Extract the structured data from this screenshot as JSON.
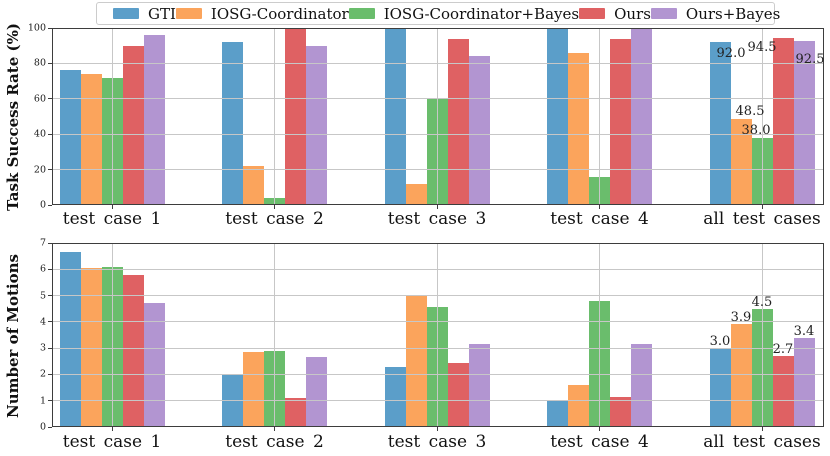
{
  "legend": {
    "entries": [
      {
        "label": "GTI",
        "color": "#5b9ec9"
      },
      {
        "label": "IOSG-Coordinator",
        "color": "#fba45c"
      },
      {
        "label": "IOSG-Coordinator+Bayes",
        "color": "#6abd6c"
      },
      {
        "label": "Ours",
        "color": "#df6163"
      },
      {
        "label": "Ours+Bayes",
        "color": "#b295d1"
      }
    ]
  },
  "chart_data": [
    {
      "type": "bar",
      "title": "",
      "xlabel": "",
      "ylabel": "Task Success Rate (%)",
      "ylim": [
        0,
        100
      ],
      "yticks": [
        0,
        20,
        40,
        60,
        80,
        100
      ],
      "grid": true,
      "legend_position": "top",
      "categories": [
        "test case 1",
        "test case 2",
        "test case 3",
        "test case 4",
        "all test cases"
      ],
      "series": [
        {
          "name": "GTI",
          "color": "#5b9ec9",
          "values": [
            76,
            92,
            100,
            100,
            92.0
          ]
        },
        {
          "name": "IOSG-Coordinator",
          "color": "#fba45c",
          "values": [
            74,
            22,
            12,
            86,
            48.5
          ]
        },
        {
          "name": "IOSG-Coordinator+Bayes",
          "color": "#6abd6c",
          "values": [
            72,
            4,
            60,
            16,
            38.0
          ]
        },
        {
          "name": "Ours",
          "color": "#df6163",
          "values": [
            90,
            100,
            94,
            94,
            94.5
          ]
        },
        {
          "name": "Ours+Bayes",
          "color": "#b295d1",
          "values": [
            96,
            90,
            84,
            100,
            92.5
          ]
        }
      ],
      "bar_labels": {
        "category": "all test cases",
        "values": [
          "92.0",
          "48.5",
          "38.0",
          "94.5",
          "92.5"
        ]
      }
    },
    {
      "type": "bar",
      "title": "",
      "xlabel": "",
      "ylabel": "Number of Motions",
      "ylim": [
        0,
        7
      ],
      "yticks": [
        0,
        1,
        2,
        3,
        4,
        5,
        6,
        7
      ],
      "grid": true,
      "categories": [
        "test case 1",
        "test case 2",
        "test case 3",
        "test case 4",
        "all test cases"
      ],
      "series": [
        {
          "name": "GTI",
          "color": "#5b9ec9",
          "values": [
            6.65,
            2.0,
            2.3,
            1.0,
            3.0
          ]
        },
        {
          "name": "IOSG-Coordinator",
          "color": "#fba45c",
          "values": [
            6.05,
            2.85,
            5.0,
            1.6,
            3.9
          ]
        },
        {
          "name": "IOSG-Coordinator+Bayes",
          "color": "#6abd6c",
          "values": [
            6.1,
            2.9,
            4.55,
            4.8,
            4.5
          ]
        },
        {
          "name": "Ours",
          "color": "#df6163",
          "values": [
            5.8,
            1.1,
            2.45,
            1.15,
            2.7
          ]
        },
        {
          "name": "Ours+Bayes",
          "color": "#b295d1",
          "values": [
            4.7,
            2.65,
            3.15,
            3.15,
            3.4
          ]
        }
      ],
      "bar_labels": {
        "category": "all test cases",
        "values": [
          "3.0",
          "3.9",
          "4.5",
          "2.7",
          "3.4"
        ]
      }
    }
  ]
}
